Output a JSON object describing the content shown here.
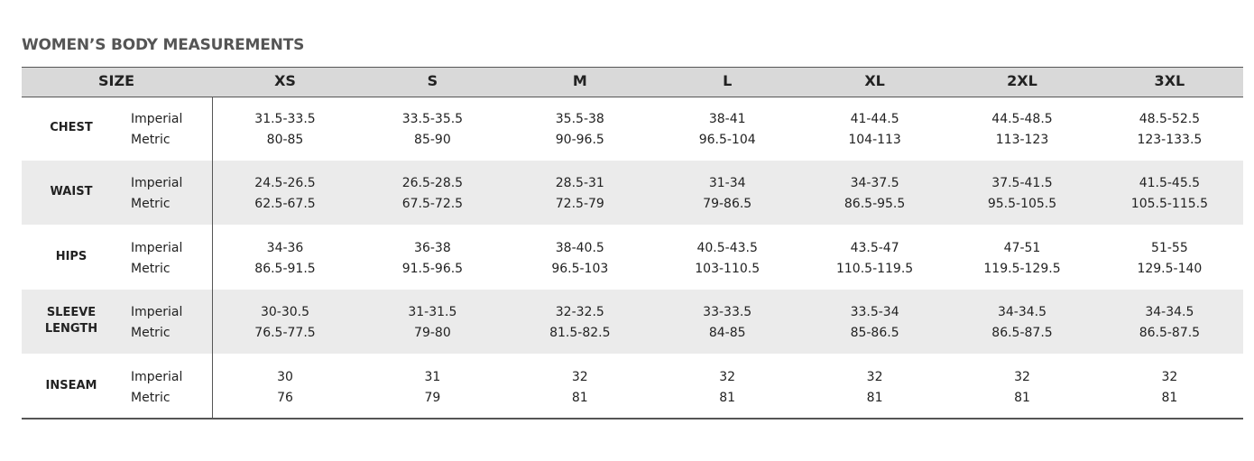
{
  "title": "WOMEN’S BODY MEASUREMENTS",
  "table": {
    "header": [
      "SIZE",
      "XS",
      "S",
      "M",
      "L",
      "XL",
      "2XL",
      "3XL"
    ],
    "rows": [
      {
        "label": "CHEST",
        "units": [
          "Imperial",
          "Metric"
        ],
        "imperial": [
          "31.5-33.5",
          "33.5-35.5",
          "35.5-38",
          "38-41",
          "41-44.5",
          "44.5-48.5",
          "48.5-52.5"
        ],
        "metric": [
          "80-85",
          "85-90",
          "90-96.5",
          "96.5-104",
          "104-113",
          "113-123",
          "123-133.5"
        ]
      },
      {
        "label": "WAIST",
        "units": [
          "Imperial",
          "Metric"
        ],
        "imperial": [
          "24.5-26.5",
          "26.5-28.5",
          "28.5-31",
          "31-34",
          "34-37.5",
          "37.5-41.5",
          "41.5-45.5"
        ],
        "metric": [
          "62.5-67.5",
          "67.5-72.5",
          "72.5-79",
          "79-86.5",
          "86.5-95.5",
          "95.5-105.5",
          "105.5-115.5"
        ]
      },
      {
        "label": "HIPS",
        "units": [
          "Imperial",
          "Metric"
        ],
        "imperial": [
          "34-36",
          "36-38",
          "38-40.5",
          "40.5-43.5",
          "43.5-47",
          "47-51",
          "51-55"
        ],
        "metric": [
          "86.5-91.5",
          "91.5-96.5",
          "96.5-103",
          "103-110.5",
          "110.5-119.5",
          "119.5-129.5",
          "129.5-140"
        ]
      },
      {
        "label": "SLEEVE LENGTH",
        "units": [
          "Imperial",
          "Metric"
        ],
        "imperial": [
          "30-30.5",
          "31-31.5",
          "32-32.5",
          "33-33.5",
          "33.5-34",
          "34-34.5",
          "34-34.5"
        ],
        "metric": [
          "76.5-77.5",
          "79-80",
          "81.5-82.5",
          "84-85",
          "85-86.5",
          "86.5-87.5",
          "86.5-87.5"
        ]
      },
      {
        "label": "INSEAM",
        "units": [
          "Imperial",
          "Metric"
        ],
        "imperial": [
          "30",
          "31",
          "32",
          "32",
          "32",
          "32",
          "32"
        ],
        "metric": [
          "76",
          "79",
          "81",
          "81",
          "81",
          "81",
          "81"
        ]
      }
    ]
  }
}
